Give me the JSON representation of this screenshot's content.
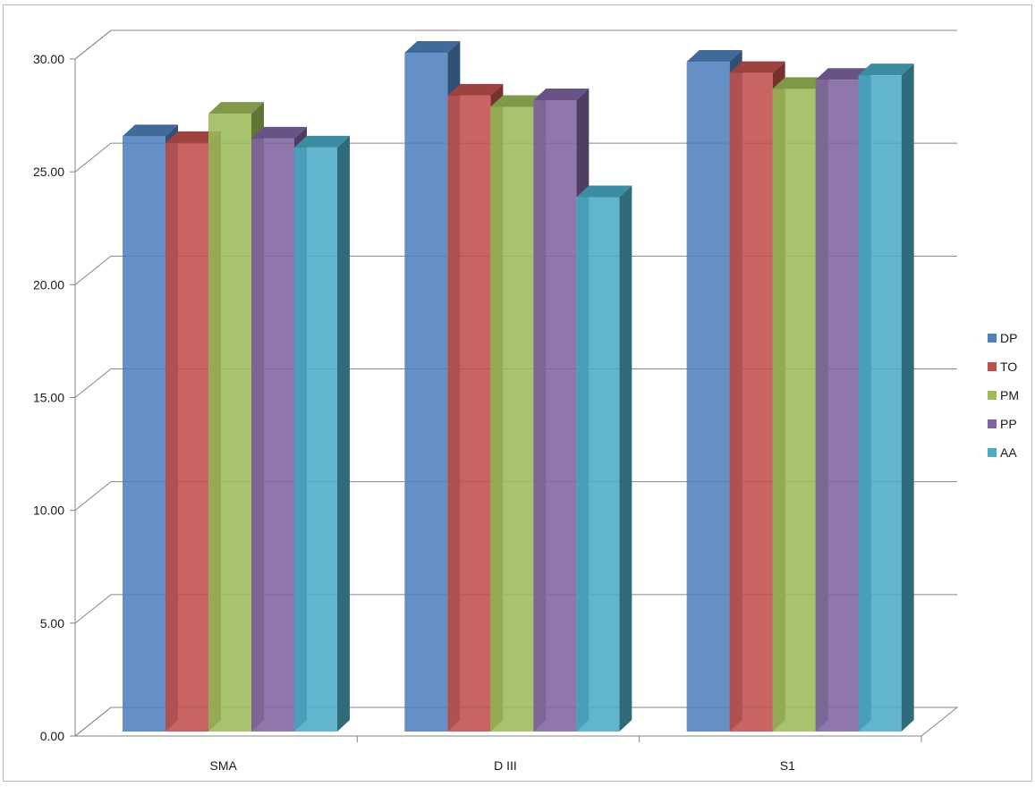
{
  "chart_data": {
    "type": "bar",
    "title": "",
    "xlabel": "",
    "ylabel": "",
    "ylim": [
      0,
      30
    ],
    "ytick_labels": [
      "0.00",
      "5.00",
      "10.00",
      "15.00",
      "20.00",
      "25.00",
      "30.00"
    ],
    "grid": true,
    "legend_position": "right",
    "categories": [
      "SMA",
      "D III",
      "S1"
    ],
    "series": [
      {
        "name": "DP",
        "values": [
          26.5,
          30.2,
          29.8
        ],
        "color": "#4f81bd"
      },
      {
        "name": "TO",
        "values": [
          26.2,
          28.3,
          29.3
        ],
        "color": "#c0504d"
      },
      {
        "name": "PM",
        "values": [
          27.5,
          27.8,
          28.6
        ],
        "color": "#9bbb59"
      },
      {
        "name": "PP",
        "values": [
          26.4,
          28.1,
          29.0
        ],
        "color": "#8064a2"
      },
      {
        "name": "AA",
        "values": [
          26.0,
          23.8,
          29.2
        ],
        "color": "#4bacc6"
      }
    ]
  }
}
